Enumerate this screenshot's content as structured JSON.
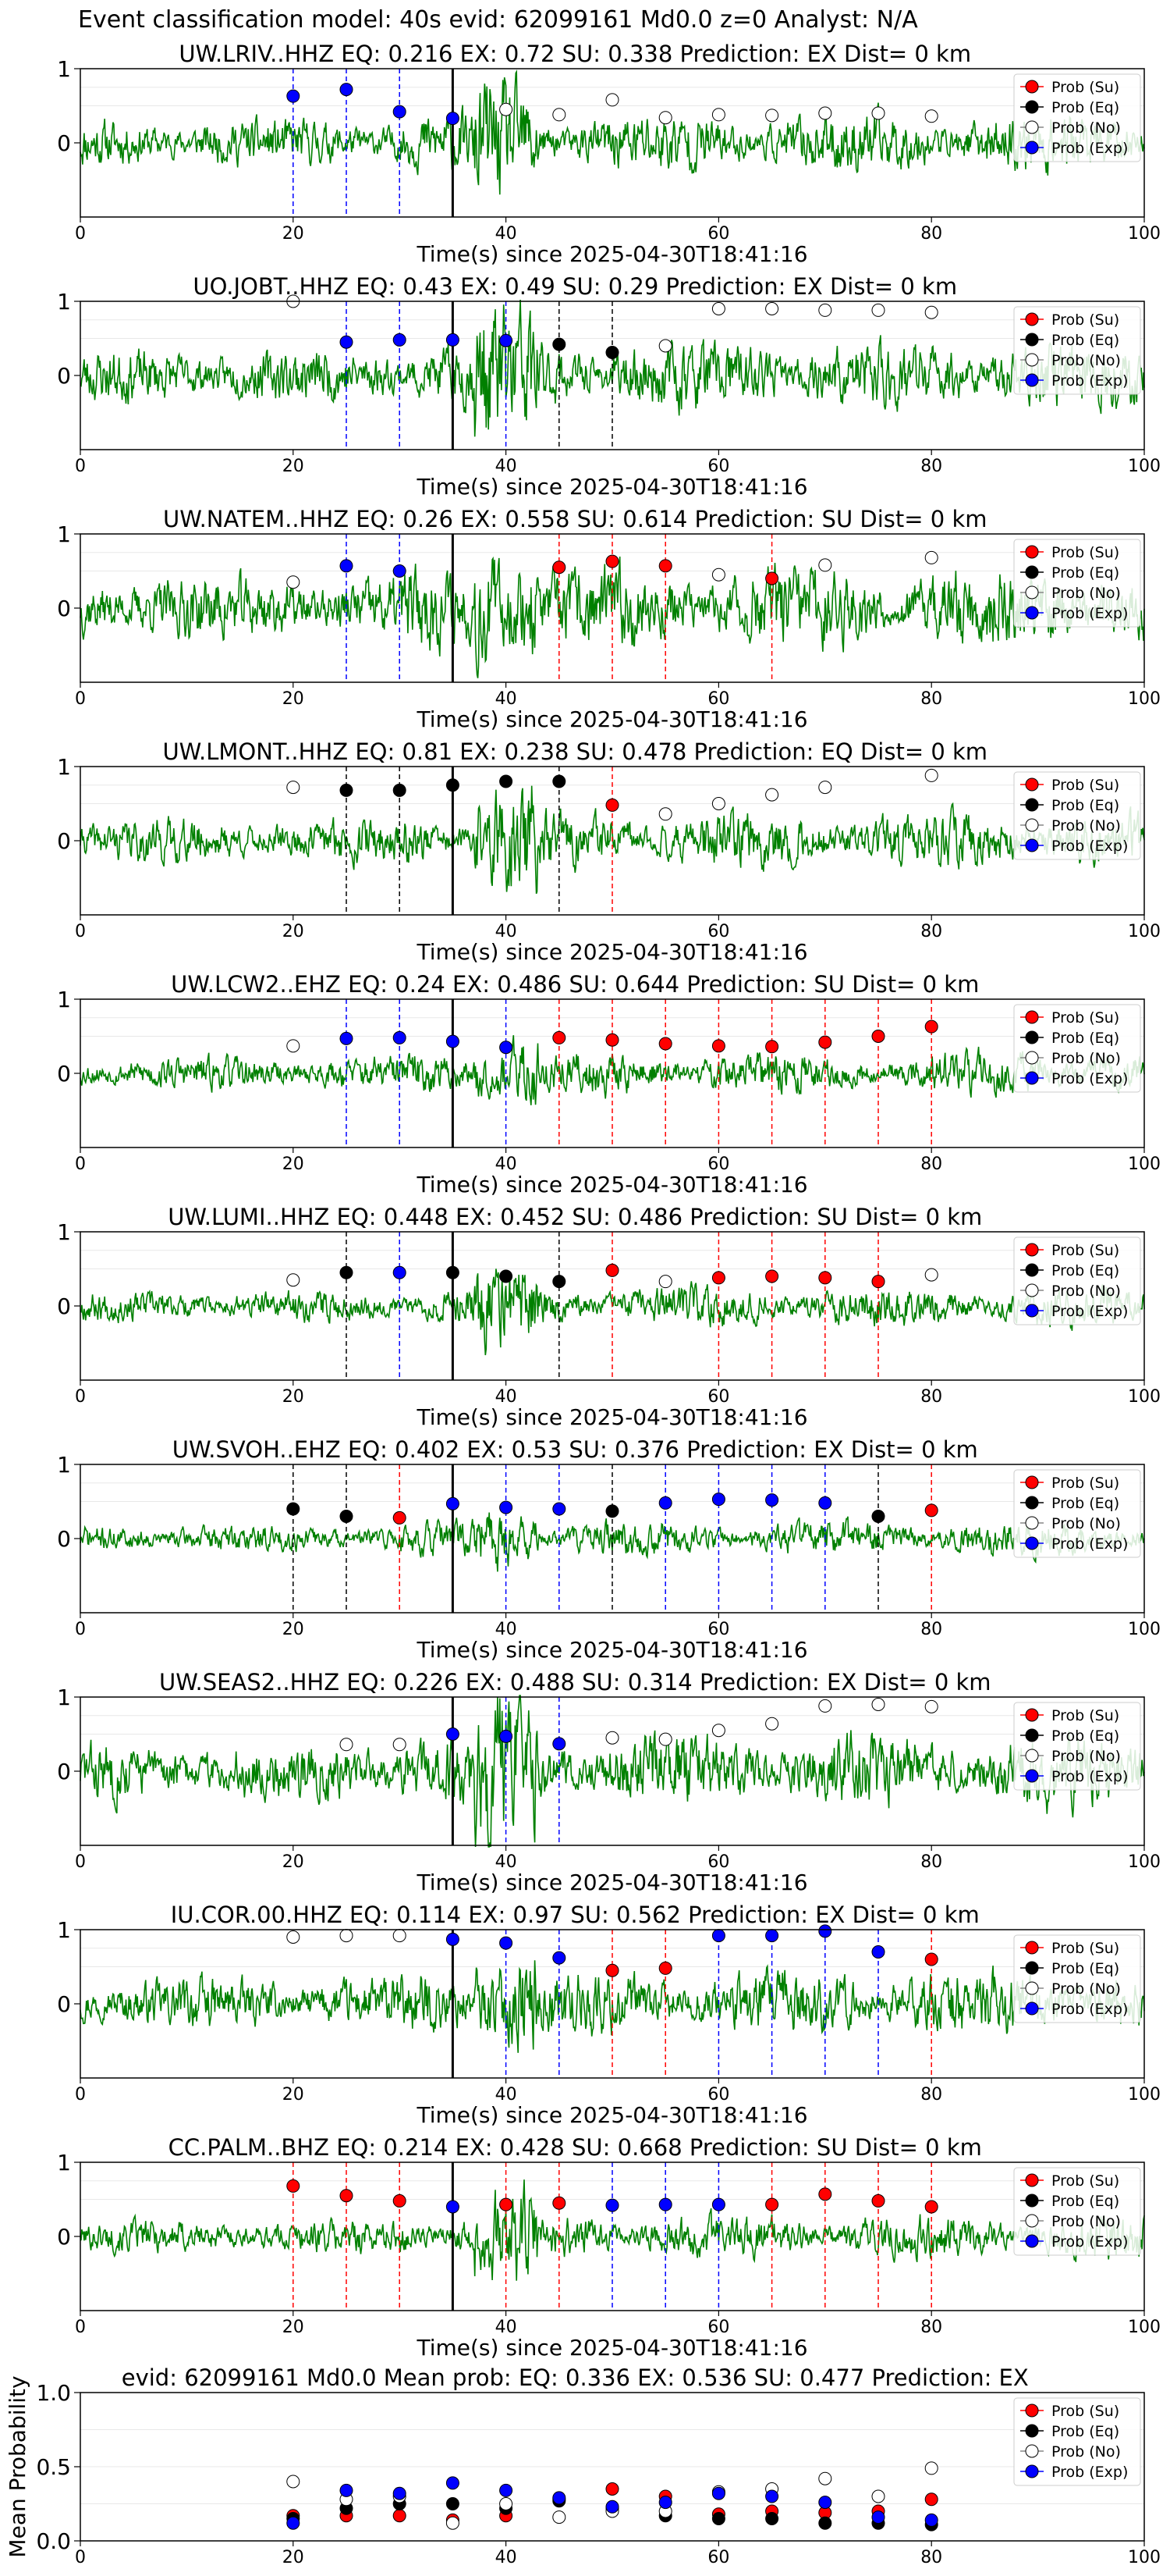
{
  "header": "Event classification model: 40s evid: 62099161 Md0.0 z=0 Analyst: N/A",
  "xlabel": "Time(s) since 2025-04-30T18:41:16",
  "legend": [
    "Prob (Su)",
    "Prob (Eq)",
    "Prob (No)",
    "Prob (Exp)"
  ],
  "colors": {
    "su": "#ff0000",
    "eq": "#000000",
    "no": "#ffffff",
    "exp": "#0000ff",
    "trace": "#008000"
  },
  "chart_data": [
    {
      "type": "line",
      "title": "UW.LRIV..HHZ   EQ: 0.216   EX: 0.72   SU: 0.338    Prediction: EX     Dist= 0 km",
      "ylim": [
        -1,
        1
      ],
      "xlim": [
        0,
        100
      ],
      "yticks": [
        0,
        1
      ],
      "xticks": [
        0,
        20,
        40,
        60,
        80,
        100
      ],
      "seed": 11,
      "amp": 0.28,
      "points": [
        [
          20,
          "exp",
          0.63
        ],
        [
          25,
          "exp",
          0.72
        ],
        [
          30,
          "exp",
          0.42
        ],
        [
          35,
          "exp",
          0.33
        ],
        [
          40,
          "no",
          0.45
        ],
        [
          45,
          "no",
          0.38
        ],
        [
          50,
          "no",
          0.58
        ],
        [
          55,
          "no",
          0.34
        ],
        [
          60,
          "no",
          0.38
        ],
        [
          65,
          "no",
          0.37
        ],
        [
          70,
          "no",
          0.4
        ],
        [
          75,
          "no",
          0.4
        ],
        [
          80,
          "no",
          0.36
        ]
      ],
      "lines": [
        [
          20,
          "exp"
        ],
        [
          25,
          "exp"
        ],
        [
          30,
          "exp"
        ]
      ]
    },
    {
      "type": "line",
      "title": "UO.JOBT..HHZ   EQ: 0.43   EX: 0.49   SU: 0.29    Prediction: EX     Dist= 0 km",
      "ylim": [
        -1,
        1
      ],
      "xlim": [
        0,
        100
      ],
      "yticks": [
        0,
        1
      ],
      "xticks": [
        0,
        20,
        40,
        60,
        80,
        100
      ],
      "seed": 23,
      "amp": 0.32,
      "points": [
        [
          20,
          "no",
          1.0
        ],
        [
          25,
          "exp",
          0.45
        ],
        [
          30,
          "exp",
          0.48
        ],
        [
          35,
          "exp",
          0.48
        ],
        [
          40,
          "exp",
          0.47
        ],
        [
          45,
          "eq",
          0.42
        ],
        [
          50,
          "eq",
          0.31
        ],
        [
          55,
          "no",
          0.4
        ],
        [
          60,
          "no",
          0.9
        ],
        [
          65,
          "no",
          0.9
        ],
        [
          70,
          "no",
          0.88
        ],
        [
          75,
          "no",
          0.88
        ],
        [
          80,
          "no",
          0.85
        ]
      ],
      "lines": [
        [
          25,
          "exp"
        ],
        [
          30,
          "exp"
        ],
        [
          40,
          "exp"
        ],
        [
          45,
          "eq"
        ],
        [
          50,
          "eq"
        ]
      ]
    },
    {
      "type": "line",
      "title": "UW.NATEM..HHZ   EQ: 0.26   EX: 0.558   SU: 0.614    Prediction: SU     Dist= 0 km",
      "ylim": [
        -1,
        1
      ],
      "xlim": [
        0,
        100
      ],
      "yticks": [
        0,
        1
      ],
      "xticks": [
        0,
        20,
        40,
        60,
        80,
        100
      ],
      "seed": 37,
      "amp": 0.38,
      "points": [
        [
          20,
          "no",
          0.35
        ],
        [
          25,
          "exp",
          0.57
        ],
        [
          30,
          "exp",
          0.5
        ],
        [
          45,
          "su",
          0.55
        ],
        [
          50,
          "su",
          0.63
        ],
        [
          55,
          "su",
          0.57
        ],
        [
          60,
          "no",
          0.45
        ],
        [
          65,
          "su",
          0.4
        ],
        [
          70,
          "no",
          0.58
        ],
        [
          80,
          "no",
          0.68
        ]
      ],
      "lines": [
        [
          25,
          "exp"
        ],
        [
          30,
          "exp"
        ],
        [
          45,
          "su"
        ],
        [
          50,
          "su"
        ],
        [
          55,
          "su"
        ],
        [
          65,
          "su"
        ]
      ]
    },
    {
      "type": "line",
      "title": "UW.LMONT..HHZ   EQ: 0.81   EX: 0.238   SU: 0.478    Prediction: EQ     Dist= 0 km",
      "ylim": [
        -1,
        1
      ],
      "xlim": [
        0,
        100
      ],
      "yticks": [
        0,
        1
      ],
      "xticks": [
        0,
        20,
        40,
        60,
        80,
        100
      ],
      "seed": 41,
      "amp": 0.26,
      "points": [
        [
          20,
          "no",
          0.72
        ],
        [
          25,
          "eq",
          0.68
        ],
        [
          30,
          "eq",
          0.68
        ],
        [
          35,
          "eq",
          0.75
        ],
        [
          40,
          "eq",
          0.8
        ],
        [
          45,
          "eq",
          0.8
        ],
        [
          50,
          "su",
          0.48
        ],
        [
          55,
          "no",
          0.36
        ],
        [
          60,
          "no",
          0.5
        ],
        [
          65,
          "no",
          0.62
        ],
        [
          70,
          "no",
          0.72
        ],
        [
          80,
          "no",
          0.88
        ]
      ],
      "lines": [
        [
          25,
          "eq"
        ],
        [
          30,
          "eq"
        ],
        [
          45,
          "eq"
        ],
        [
          50,
          "su"
        ]
      ]
    },
    {
      "type": "line",
      "title": "UW.LCW2..EHZ   EQ: 0.24   EX: 0.486   SU: 0.644    Prediction: SU     Dist= 0 km",
      "ylim": [
        -1,
        1
      ],
      "xlim": [
        0,
        100
      ],
      "yticks": [
        0,
        1
      ],
      "xticks": [
        0,
        20,
        40,
        60,
        80,
        100
      ],
      "seed": 53,
      "amp": 0.2,
      "points": [
        [
          20,
          "no",
          0.37
        ],
        [
          25,
          "exp",
          0.47
        ],
        [
          30,
          "exp",
          0.48
        ],
        [
          35,
          "exp",
          0.43
        ],
        [
          40,
          "exp",
          0.35
        ],
        [
          45,
          "su",
          0.48
        ],
        [
          50,
          "su",
          0.45
        ],
        [
          55,
          "su",
          0.4
        ],
        [
          60,
          "su",
          0.37
        ],
        [
          65,
          "su",
          0.36
        ],
        [
          70,
          "su",
          0.42
        ],
        [
          75,
          "su",
          0.5
        ],
        [
          80,
          "su",
          0.63
        ]
      ],
      "lines": [
        [
          25,
          "exp"
        ],
        [
          30,
          "exp"
        ],
        [
          40,
          "exp"
        ],
        [
          45,
          "su"
        ],
        [
          50,
          "su"
        ],
        [
          55,
          "su"
        ],
        [
          60,
          "su"
        ],
        [
          65,
          "su"
        ],
        [
          70,
          "su"
        ],
        [
          75,
          "su"
        ],
        [
          80,
          "su"
        ]
      ]
    },
    {
      "type": "line",
      "title": "UW.LUMI..HHZ   EQ: 0.448   EX: 0.452   SU: 0.486    Prediction: SU     Dist= 0 km",
      "ylim": [
        -1,
        1
      ],
      "xlim": [
        0,
        100
      ],
      "yticks": [
        0,
        1
      ],
      "xticks": [
        0,
        20,
        40,
        60,
        80,
        100
      ],
      "seed": 67,
      "amp": 0.18,
      "points": [
        [
          20,
          "no",
          0.35
        ],
        [
          25,
          "eq",
          0.45
        ],
        [
          30,
          "exp",
          0.45
        ],
        [
          35,
          "eq",
          0.45
        ],
        [
          40,
          "eq",
          0.4
        ],
        [
          45,
          "eq",
          0.33
        ],
        [
          50,
          "su",
          0.48
        ],
        [
          55,
          "no",
          0.33
        ],
        [
          60,
          "su",
          0.38
        ],
        [
          65,
          "su",
          0.4
        ],
        [
          70,
          "su",
          0.38
        ],
        [
          75,
          "su",
          0.33
        ],
        [
          80,
          "no",
          0.42
        ]
      ],
      "lines": [
        [
          25,
          "eq"
        ],
        [
          30,
          "exp"
        ],
        [
          45,
          "eq"
        ],
        [
          50,
          "su"
        ],
        [
          60,
          "su"
        ],
        [
          65,
          "su"
        ],
        [
          70,
          "su"
        ],
        [
          75,
          "su"
        ]
      ]
    },
    {
      "type": "line",
      "title": "UW.SVOH..EHZ   EQ: 0.402   EX: 0.53   SU: 0.376    Prediction: EX     Dist= 0 km",
      "ylim": [
        -1,
        1
      ],
      "xlim": [
        0,
        100
      ],
      "yticks": [
        0,
        1
      ],
      "xticks": [
        0,
        20,
        40,
        60,
        80,
        100
      ],
      "seed": 71,
      "amp": 0.16,
      "points": [
        [
          20,
          "eq",
          0.4
        ],
        [
          25,
          "eq",
          0.3
        ],
        [
          30,
          "su",
          0.28
        ],
        [
          35,
          "exp",
          0.47
        ],
        [
          40,
          "exp",
          0.42
        ],
        [
          45,
          "exp",
          0.4
        ],
        [
          50,
          "eq",
          0.37
        ],
        [
          55,
          "exp",
          0.48
        ],
        [
          60,
          "exp",
          0.53
        ],
        [
          65,
          "exp",
          0.52
        ],
        [
          70,
          "exp",
          0.48
        ],
        [
          75,
          "eq",
          0.3
        ],
        [
          80,
          "su",
          0.38
        ]
      ],
      "lines": [
        [
          20,
          "eq"
        ],
        [
          25,
          "eq"
        ],
        [
          30,
          "su"
        ],
        [
          40,
          "exp"
        ],
        [
          45,
          "exp"
        ],
        [
          50,
          "eq"
        ],
        [
          55,
          "exp"
        ],
        [
          60,
          "exp"
        ],
        [
          65,
          "exp"
        ],
        [
          70,
          "exp"
        ],
        [
          75,
          "eq"
        ],
        [
          80,
          "su"
        ]
      ]
    },
    {
      "type": "line",
      "title": "UW.SEAS2..HHZ   EQ: 0.226   EX: 0.488   SU: 0.314    Prediction: EX     Dist= 0 km",
      "ylim": [
        -1,
        1
      ],
      "xlim": [
        0,
        100
      ],
      "yticks": [
        0,
        1
      ],
      "xticks": [
        0,
        20,
        40,
        60,
        80,
        100
      ],
      "seed": 83,
      "amp": 0.34,
      "points": [
        [
          25,
          "no",
          0.36
        ],
        [
          30,
          "no",
          0.36
        ],
        [
          35,
          "exp",
          0.5
        ],
        [
          40,
          "exp",
          0.47
        ],
        [
          45,
          "exp",
          0.37
        ],
        [
          50,
          "no",
          0.45
        ],
        [
          55,
          "no",
          0.43
        ],
        [
          60,
          "no",
          0.55
        ],
        [
          65,
          "no",
          0.64
        ],
        [
          70,
          "no",
          0.88
        ],
        [
          75,
          "no",
          0.9
        ],
        [
          80,
          "no",
          0.87
        ]
      ],
      "lines": [
        [
          40,
          "exp"
        ],
        [
          45,
          "exp"
        ]
      ]
    },
    {
      "type": "line",
      "title": "IU.COR.00.HHZ   EQ: 0.114   EX: 0.97   SU: 0.562    Prediction: EX     Dist= 0 km",
      "ylim": [
        -1,
        1
      ],
      "xlim": [
        0,
        100
      ],
      "yticks": [
        0,
        1
      ],
      "xticks": [
        0,
        20,
        40,
        60,
        80,
        100
      ],
      "seed": 97,
      "amp": 0.3,
      "points": [
        [
          20,
          "no",
          0.9
        ],
        [
          25,
          "no",
          0.92
        ],
        [
          30,
          "no",
          0.92
        ],
        [
          35,
          "exp",
          0.87
        ],
        [
          40,
          "exp",
          0.82
        ],
        [
          45,
          "exp",
          0.62
        ],
        [
          50,
          "su",
          0.45
        ],
        [
          55,
          "su",
          0.48
        ],
        [
          60,
          "exp",
          0.92
        ],
        [
          65,
          "exp",
          0.92
        ],
        [
          70,
          "exp",
          0.98
        ],
        [
          75,
          "exp",
          0.7
        ],
        [
          80,
          "su",
          0.6
        ]
      ],
      "lines": [
        [
          40,
          "exp"
        ],
        [
          45,
          "exp"
        ],
        [
          50,
          "su"
        ],
        [
          55,
          "su"
        ],
        [
          60,
          "exp"
        ],
        [
          65,
          "exp"
        ],
        [
          70,
          "exp"
        ],
        [
          75,
          "exp"
        ],
        [
          80,
          "su"
        ]
      ]
    },
    {
      "type": "line",
      "title": "CC.PALM..BHZ   EQ: 0.214   EX: 0.428   SU: 0.668    Prediction: SU     Dist= 0 km",
      "ylim": [
        -1,
        1
      ],
      "xlim": [
        0,
        100
      ],
      "yticks": [
        0,
        1
      ],
      "xticks": [
        0,
        20,
        40,
        60,
        80,
        100
      ],
      "seed": 101,
      "amp": 0.2,
      "points": [
        [
          20,
          "su",
          0.68
        ],
        [
          25,
          "su",
          0.55
        ],
        [
          30,
          "su",
          0.48
        ],
        [
          35,
          "exp",
          0.4
        ],
        [
          40,
          "su",
          0.43
        ],
        [
          45,
          "su",
          0.45
        ],
        [
          50,
          "exp",
          0.42
        ],
        [
          55,
          "exp",
          0.43
        ],
        [
          60,
          "exp",
          0.43
        ],
        [
          65,
          "su",
          0.43
        ],
        [
          70,
          "su",
          0.57
        ],
        [
          75,
          "su",
          0.48
        ],
        [
          80,
          "su",
          0.4
        ]
      ],
      "lines": [
        [
          20,
          "su"
        ],
        [
          25,
          "su"
        ],
        [
          30,
          "su"
        ],
        [
          40,
          "su"
        ],
        [
          45,
          "su"
        ],
        [
          50,
          "exp"
        ],
        [
          55,
          "exp"
        ],
        [
          60,
          "exp"
        ],
        [
          65,
          "su"
        ],
        [
          70,
          "su"
        ],
        [
          75,
          "su"
        ],
        [
          80,
          "su"
        ]
      ]
    },
    {
      "type": "scatter",
      "title": "evid: 62099161   Md0.0    Mean prob:    EQ: 0.336  EX: 0.536  SU: 0.477    Prediction: EX",
      "ylabel": "Mean Probability",
      "ylim": [
        0,
        1
      ],
      "xlim": [
        0,
        100
      ],
      "yticks": [
        0.0,
        0.5,
        1.0
      ],
      "xticks": [
        0,
        20,
        40,
        60,
        80,
        100
      ],
      "series": [
        {
          "name": "Prob (Su)",
          "key": "su",
          "x": [
            20,
            25,
            30,
            35,
            40,
            45,
            50,
            55,
            60,
            65,
            70,
            75,
            80
          ],
          "y": [
            0.17,
            0.17,
            0.17,
            0.14,
            0.17,
            0.28,
            0.35,
            0.3,
            0.18,
            0.2,
            0.19,
            0.2,
            0.28
          ]
        },
        {
          "name": "Prob (Eq)",
          "key": "eq",
          "x": [
            20,
            25,
            30,
            35,
            40,
            45,
            50,
            55,
            60,
            65,
            70,
            75,
            80
          ],
          "y": [
            0.15,
            0.22,
            0.25,
            0.25,
            0.22,
            0.27,
            0.22,
            0.17,
            0.15,
            0.15,
            0.12,
            0.12,
            0.11
          ]
        },
        {
          "name": "Prob (No)",
          "key": "no",
          "x": [
            20,
            25,
            30,
            35,
            40,
            45,
            50,
            55,
            60,
            65,
            70,
            75,
            80
          ],
          "y": [
            0.4,
            0.28,
            0.3,
            0.12,
            0.25,
            0.16,
            0.2,
            0.2,
            0.33,
            0.35,
            0.42,
            0.3,
            0.49
          ]
        },
        {
          "name": "Prob (Exp)",
          "key": "exp",
          "x": [
            20,
            25,
            30,
            35,
            40,
            45,
            50,
            55,
            60,
            65,
            70,
            75,
            80
          ],
          "y": [
            0.12,
            0.34,
            0.32,
            0.39,
            0.34,
            0.29,
            0.23,
            0.26,
            0.32,
            0.3,
            0.26,
            0.16,
            0.14
          ]
        }
      ]
    }
  ]
}
